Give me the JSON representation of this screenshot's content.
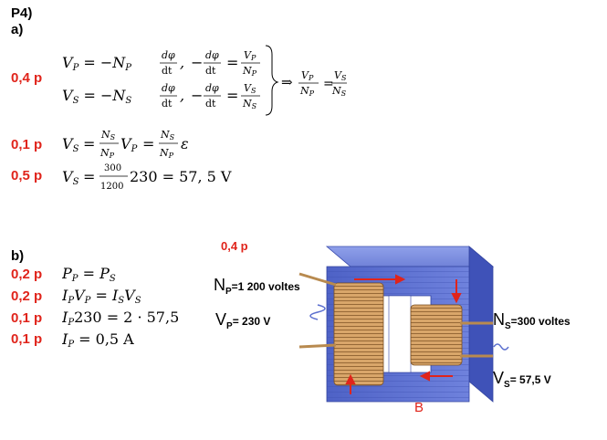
{
  "problem": "P4)",
  "part_a": {
    "label": "a)",
    "points": [
      "0,4 p",
      "0,1 p",
      "0,5 p"
    ],
    "eq_vp": "V_P = −N_P dφ/dt,  −dφ/dt = V_P/N_P",
    "eq_vs": "V_S = −N_S dφ/dt,  −dφ/dt = V_S/N_S",
    "eq_result": "⇒ V_P/N_P = V_S/N_S",
    "eq_ratio": "V_S = (N_S/N_P) V_P = (N_S/N_P) ε",
    "eq_numeric": "V_S = (300/1200) 230 = 57,5 V"
  },
  "part_b": {
    "label": "b)",
    "points": [
      "0,2 p",
      "0,2 p",
      "0,1 p",
      "0,1 p"
    ],
    "eqs": [
      "P_P = P_S",
      "I_P V_P = I_S V_S",
      "I_P 230 = 2 · 57,5",
      "I_P = 0,5 A"
    ]
  },
  "figure": {
    "points": "0,4 p",
    "np_label": "=1 200 voltes",
    "vp_label": "= 230 V",
    "ns_label": "=300 voltes",
    "vs_label": "= 57,5 V",
    "b_label": "B",
    "colors": {
      "core": "#5b6fcf",
      "coil": "#c8965a",
      "arrow": "#e0241b"
    }
  }
}
